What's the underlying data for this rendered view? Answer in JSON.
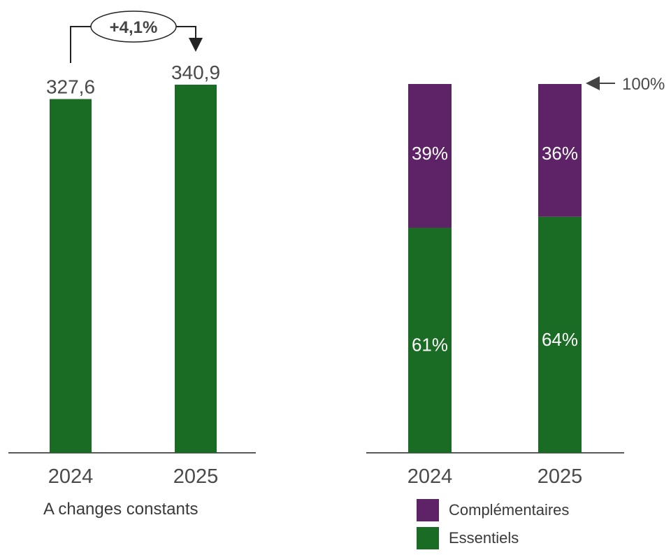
{
  "chart_data": [
    {
      "type": "bar",
      "categories": [
        "2024",
        "2025"
      ],
      "values": [
        327.6,
        340.9
      ],
      "value_labels": [
        "327,6",
        "340,9"
      ],
      "color": "#1a6b24",
      "annotation": "+4,1%",
      "caption": "A changes constants"
    },
    {
      "type": "bar",
      "stacked": true,
      "categories": [
        "2024",
        "2025"
      ],
      "series": [
        {
          "name": "Essentiels",
          "values": [
            61,
            64
          ],
          "labels": [
            "61%",
            "64%"
          ],
          "color": "#1a6b24"
        },
        {
          "name": "Complémentaires",
          "values": [
            39,
            36
          ],
          "labels": [
            "39%",
            "36%"
          ],
          "color": "#5e2266"
        }
      ],
      "total_label": "100%",
      "ylim": [
        0,
        100
      ]
    }
  ]
}
